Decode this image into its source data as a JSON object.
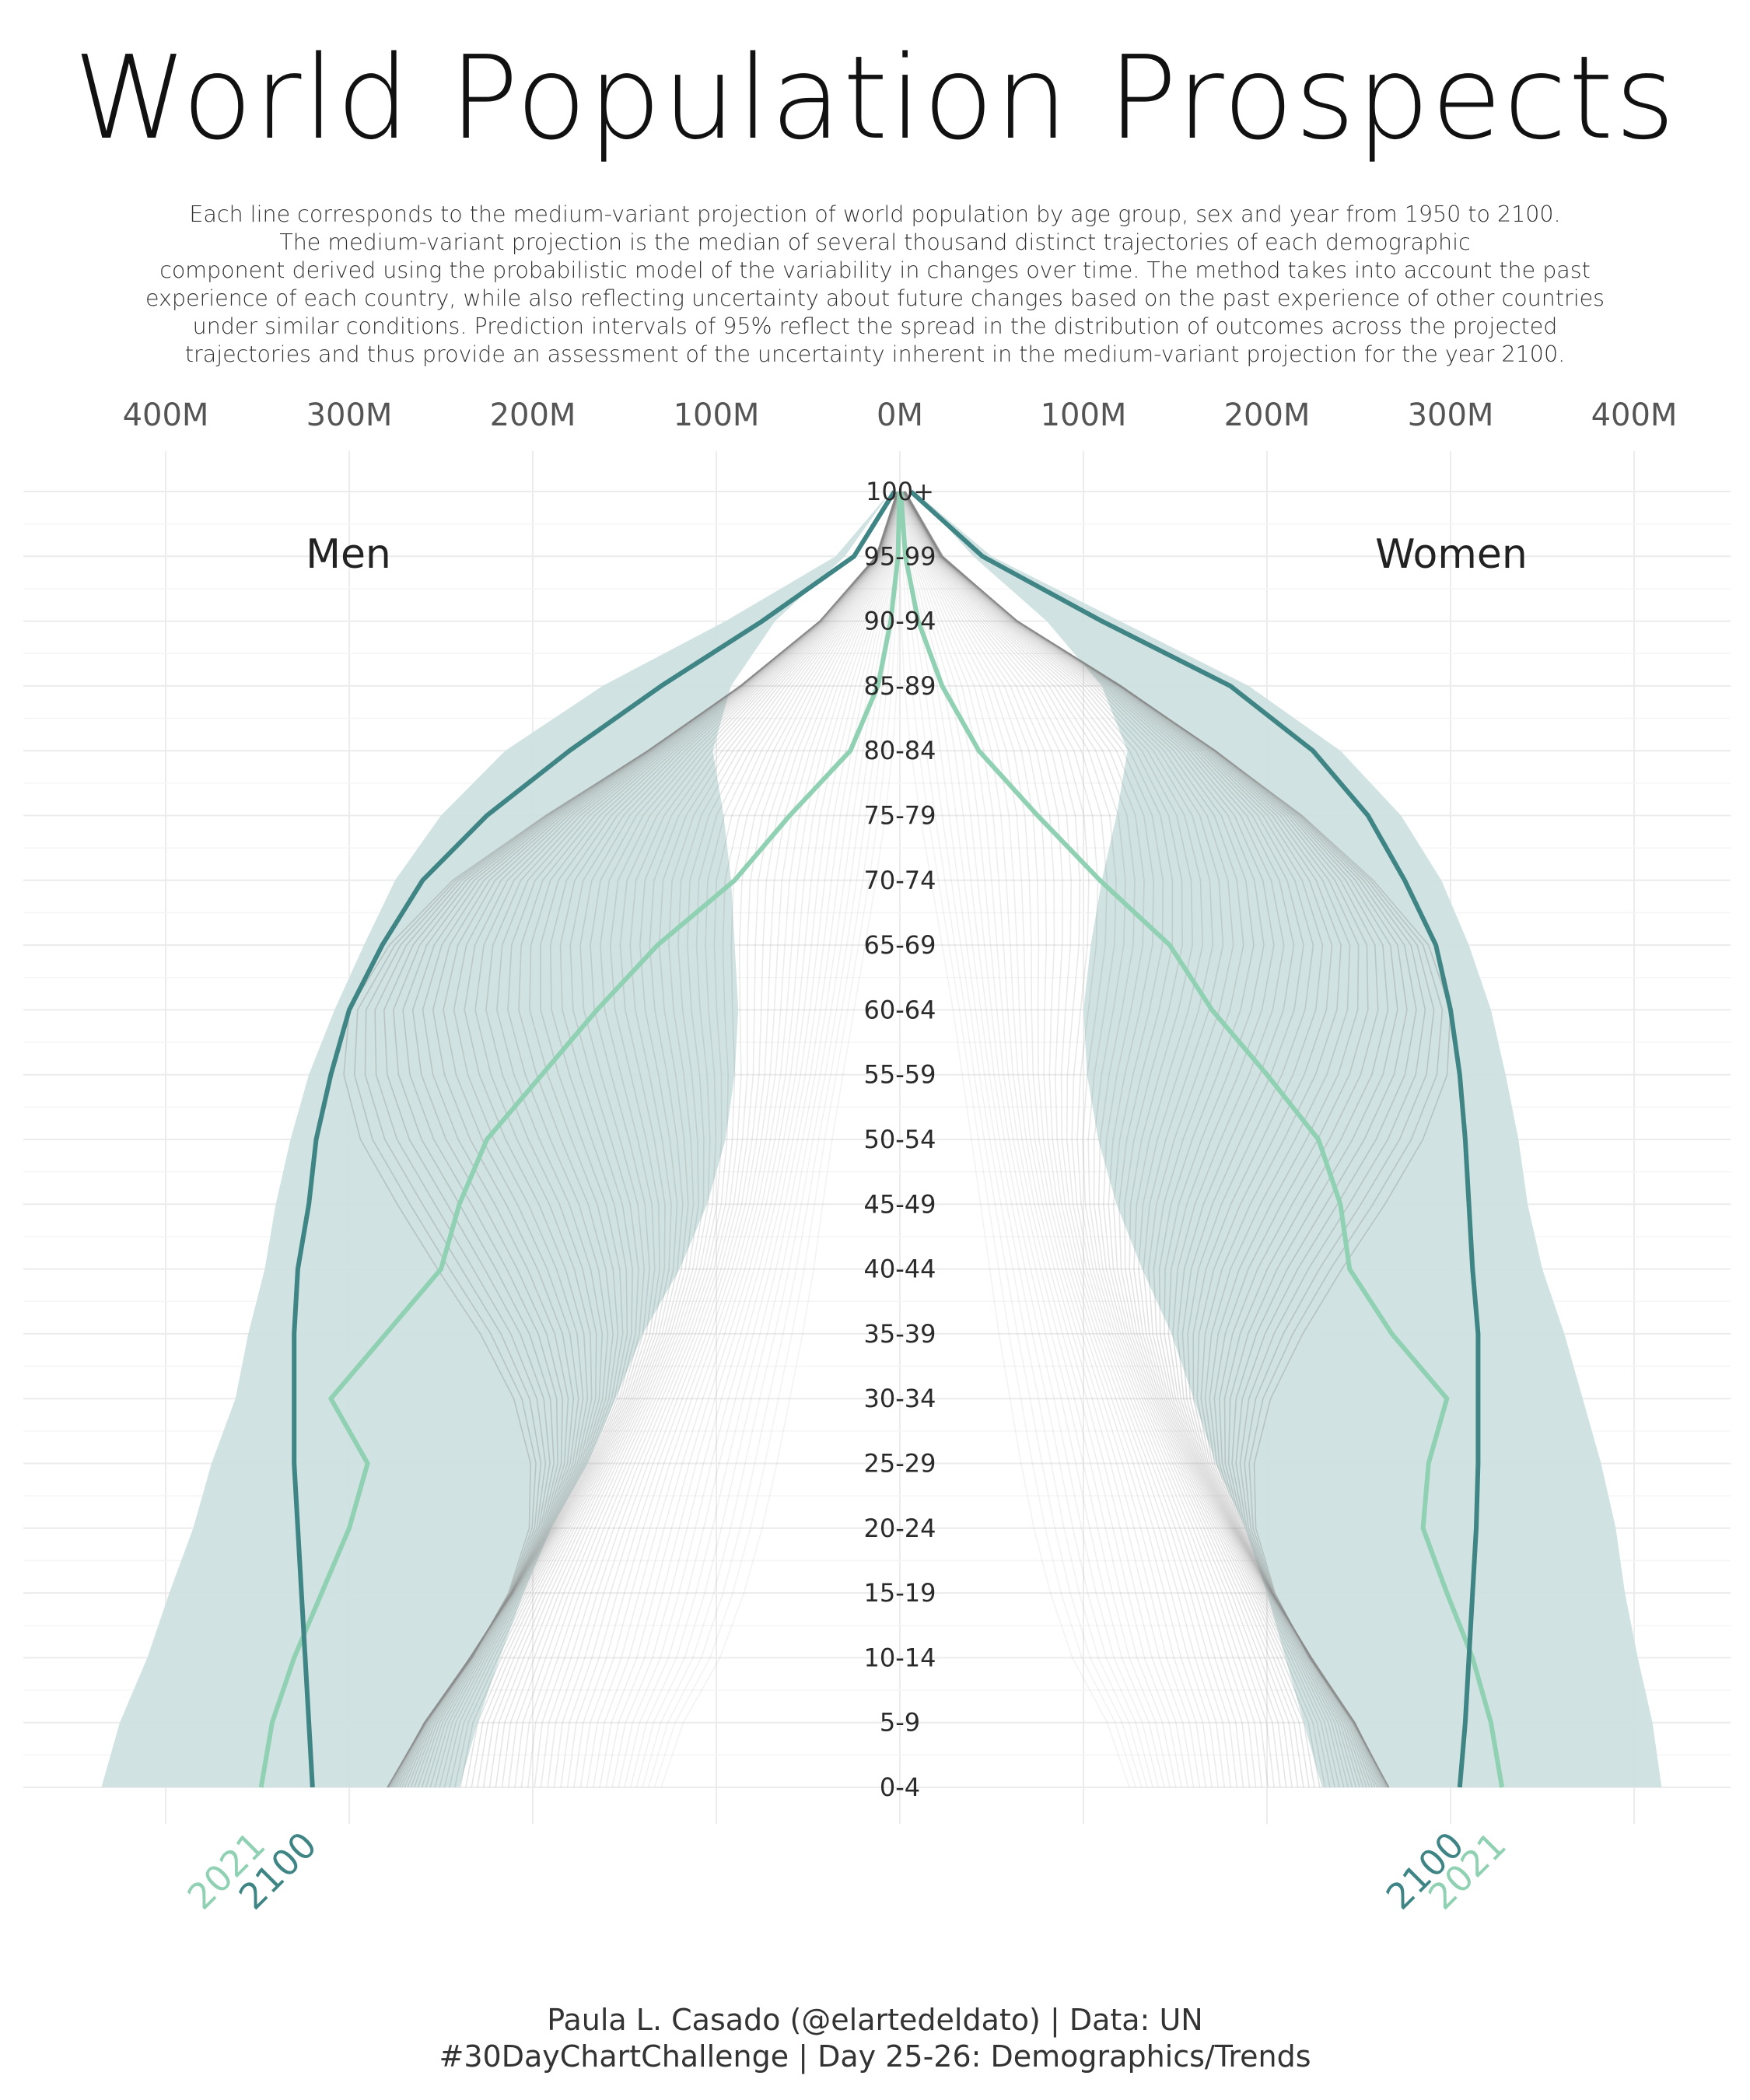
{
  "title": "World Population Prospects",
  "subtitle_lines": [
    "Each line corresponds to the medium-variant projection of world population by age group, sex and year from 1950 to 2100.",
    "The medium-variant projection is the median of several thousand distinct trajectories of each demographic",
    "component derived using the probabilistic model of the variability in changes over time. The method takes into account the past",
    "experience of each country, while also reflecting uncertainty about future changes based on the past experience of other countries",
    "under similar conditions. Prediction intervals of 95% reflect the spread in the distribution of outcomes across the projected",
    "trajectories and thus provide an assessment of the uncertainty inherent in the medium-variant projection for the year 2100."
  ],
  "caption_lines": [
    "Paula L. Casado (@elartedeldato) | Data: UN",
    "#30DayChartChallenge | Day 25-26: Demographics/Trends"
  ],
  "colors": {
    "background": "#ffffff",
    "band_95": "#cde0df",
    "line_2100": "#3f8585",
    "line_2021": "#8fd1b2",
    "history_lines": "#8a8a8a"
  },
  "chart_data": {
    "type": "line",
    "orientation": "population-pyramid",
    "x_unit": "population (millions)",
    "x_ticks": [
      "400M",
      "300M",
      "200M",
      "100M",
      "0M",
      "100M",
      "200M",
      "300M",
      "400M"
    ],
    "xlim": [
      -400,
      400
    ],
    "age_groups": [
      "0-4",
      "5-9",
      "10-14",
      "15-19",
      "20-24",
      "25-29",
      "30-34",
      "35-39",
      "40-44",
      "45-49",
      "50-54",
      "55-59",
      "60-64",
      "65-69",
      "70-74",
      "75-79",
      "80-84",
      "85-89",
      "90-94",
      "95-99",
      "100+"
    ],
    "panels": [
      {
        "label": "Men",
        "side": "left"
      },
      {
        "label": "Women",
        "side": "right"
      }
    ],
    "grid": true,
    "history_years": [
      1950,
      2100
    ],
    "series": [
      {
        "name": "2021",
        "color": "#8fd1b2",
        "men": [
          348,
          342,
          330,
          315,
          300,
          290,
          310,
          280,
          250,
          240,
          225,
          195,
          165,
          132,
          90,
          60,
          27,
          12,
          5,
          1,
          0.2
        ],
        "women": [
          328,
          322,
          312,
          298,
          285,
          288,
          298,
          268,
          245,
          240,
          228,
          200,
          170,
          147,
          109,
          75,
          43,
          23,
          10,
          3,
          0.5
        ]
      },
      {
        "name": "2100",
        "color": "#3f8585",
        "men": [
          320,
          322,
          324,
          326,
          328,
          330,
          330,
          330,
          328,
          322,
          318,
          310,
          300,
          282,
          260,
          225,
          180,
          130,
          75,
          25,
          3
        ],
        "women": [
          305,
          308,
          310,
          312,
          314,
          315,
          315,
          315,
          312,
          310,
          308,
          305,
          300,
          292,
          275,
          255,
          225,
          180,
          110,
          45,
          6
        ]
      }
    ],
    "band_95_2100": {
      "men_low": [
        240,
        230,
        218,
        205,
        190,
        170,
        155,
        140,
        120,
        105,
        95,
        90,
        88,
        90,
        92,
        96,
        102,
        92,
        68,
        30,
        5
      ],
      "men_high": [
        435,
        425,
        410,
        398,
        385,
        375,
        362,
        355,
        346,
        340,
        332,
        322,
        308,
        292,
        275,
        250,
        215,
        162,
        95,
        35,
        5
      ],
      "women_low": [
        230,
        220,
        210,
        200,
        188,
        172,
        160,
        148,
        132,
        118,
        108,
        102,
        100,
        104,
        110,
        118,
        124,
        110,
        80,
        40,
        8
      ],
      "women_high": [
        415,
        410,
        402,
        395,
        390,
        382,
        372,
        362,
        350,
        342,
        337,
        330,
        322,
        310,
        295,
        273,
        240,
        190,
        120,
        50,
        8
      ]
    }
  }
}
